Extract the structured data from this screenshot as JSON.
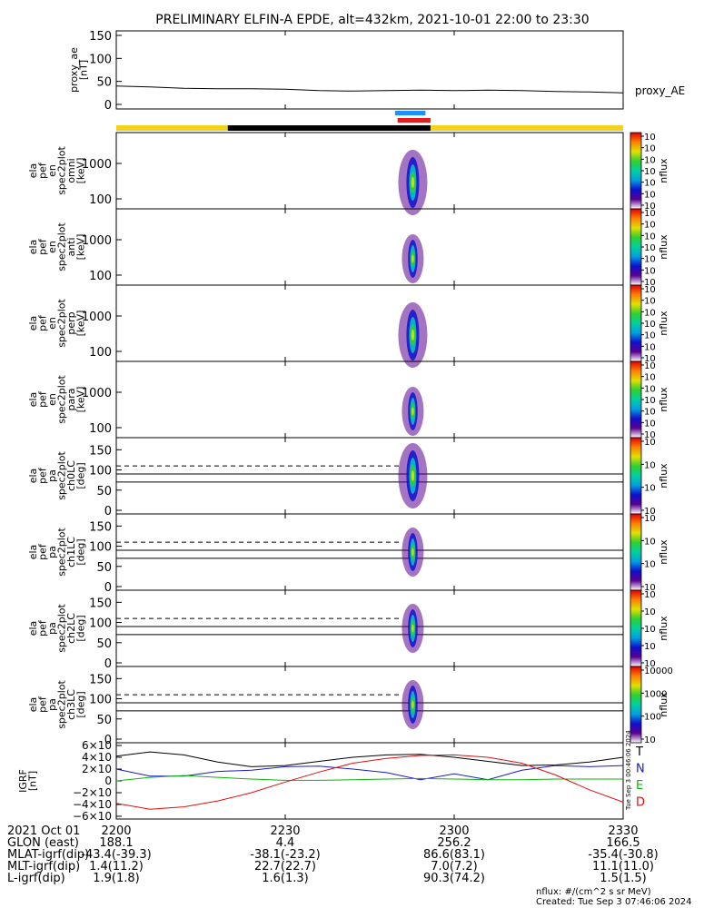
{
  "chart_data": {
    "type": "spectrogram",
    "title": "PRELIMINARY ELFIN-A EPDE, alt=432km, 2021-10-01 22:00 to 23:30",
    "x_ticks": [
      "2200",
      "2230",
      "2300",
      "2330"
    ],
    "proxy_ae": {
      "ylabel": [
        "proxy_ae",
        "[nT]"
      ],
      "yticks": [
        "150",
        "100",
        "50",
        "0"
      ],
      "ylim": [
        0,
        150
      ],
      "series_label": "proxy_AE",
      "values": [
        40,
        38,
        35,
        34,
        34,
        33,
        30,
        29,
        30,
        31,
        30,
        31,
        30,
        28,
        27,
        25
      ]
    },
    "status_bar": {
      "segments": [
        {
          "from": 0.0,
          "to": 0.22,
          "color": "#f2d21a"
        },
        {
          "from": 0.22,
          "to": 0.62,
          "color": "#000000"
        },
        {
          "from": 0.62,
          "to": 1.0,
          "color": "#f2d21a"
        }
      ],
      "markers": [
        {
          "from": 0.55,
          "to": 0.61,
          "color": "#1e90ff"
        },
        {
          "from": 0.555,
          "to": 0.62,
          "color": "#e02020"
        }
      ]
    },
    "panels": [
      {
        "ylabel": [
          "ela",
          "pef",
          "en",
          "spec2plot",
          "omni",
          "[keV]"
        ],
        "yticks": [
          "1000",
          "100"
        ],
        "yscale": "log",
        "cbar_ticks": [
          "10<sup>7</sup>",
          "10<sup>6</sup>",
          "10<sup>5</sup>",
          "10<sup>4</sup>",
          "10<sup>3</sup>",
          "10<sup>2</sup>",
          "10<sup>1</sup>"
        ],
        "cbar_label": "nflux"
      },
      {
        "ylabel": [
          "ela",
          "pef",
          "en",
          "spec2plot",
          "anti",
          "[keV]"
        ],
        "yticks": [
          "1000",
          "100"
        ],
        "yscale": "log",
        "cbar_ticks": [
          "10<sup>7</sup>",
          "10<sup>6</sup>",
          "10<sup>5</sup>",
          "10<sup>4</sup>",
          "10<sup>3</sup>",
          "10<sup>2</sup>",
          "10<sup>1</sup>"
        ],
        "cbar_label": "nflux"
      },
      {
        "ylabel": [
          "ela",
          "pef",
          "en",
          "spec2plot",
          "perp",
          "[keV]"
        ],
        "yticks": [
          "1000",
          "100"
        ],
        "yscale": "log",
        "cbar_ticks": [
          "10<sup>7</sup>",
          "10<sup>6</sup>",
          "10<sup>5</sup>",
          "10<sup>4</sup>",
          "10<sup>3</sup>",
          "10<sup>2</sup>",
          "10<sup>1</sup>"
        ],
        "cbar_label": "nflux"
      },
      {
        "ylabel": [
          "ela",
          "pef",
          "en",
          "spec2plot",
          "para",
          "[keV]"
        ],
        "yticks": [
          "1000",
          "100"
        ],
        "yscale": "log",
        "cbar_ticks": [
          "10<sup>7</sup>",
          "10<sup>6</sup>",
          "10<sup>5</sup>",
          "10<sup>4</sup>",
          "10<sup>3</sup>",
          "10<sup>2</sup>",
          "10<sup>1</sup>"
        ],
        "cbar_label": "nflux"
      },
      {
        "ylabel": [
          "ela",
          "pef",
          "pa",
          "spec2plot",
          "ch0LC",
          "[deg]"
        ],
        "yticks": [
          "150",
          "100",
          "50",
          "0"
        ],
        "yscale": "linear",
        "cbar_ticks": [
          "10<sup>7</sup>",
          "10<sup>6</sup>",
          "10<sup>5</sup>",
          "10<sup>4</sup>"
        ],
        "cbar_label": "nflux"
      },
      {
        "ylabel": [
          "ela",
          "pef",
          "pa",
          "spec2plot",
          "ch1LC",
          "[deg]"
        ],
        "yticks": [
          "150",
          "100",
          "50",
          "0"
        ],
        "yscale": "linear",
        "cbar_ticks": [
          "10<sup>6</sup>",
          "10<sup>5</sup>",
          "10<sup>4</sup>",
          "10<sup>3</sup>"
        ],
        "cbar_label": "nflux"
      },
      {
        "ylabel": [
          "ela",
          "pef",
          "pa",
          "spec2plot",
          "ch2LC",
          "[deg]"
        ],
        "yticks": [
          "150",
          "100",
          "50",
          "0"
        ],
        "yscale": "linear",
        "cbar_ticks": [
          "10<sup>6</sup>",
          "10<sup>5</sup>",
          "10<sup>4</sup>",
          "10<sup>3</sup>",
          "10<sup>2</sup>"
        ],
        "cbar_label": "nflux"
      },
      {
        "ylabel": [
          "ela",
          "pef",
          "pa",
          "spec2plot",
          "ch3LC",
          "[deg]"
        ],
        "yticks": [
          "150",
          "100",
          "50",
          "0"
        ],
        "yscale": "linear",
        "cbar_ticks": [
          "10000",
          "1000",
          "100",
          "10"
        ],
        "cbar_label": "nflux"
      }
    ],
    "igrf": {
      "ylabel": [
        "IGRF",
        "[nT]"
      ],
      "yticks": [
        "6×10<sup>4</sup>",
        "4×10<sup>4</sup>",
        "2×10<sup>4</sup>",
        "0",
        "−2×10<sup>4</sup>",
        "−4×10<sup>4</sup>",
        "−6×10<sup>4</sup>"
      ],
      "ylim": [
        -60000,
        60000
      ],
      "series": [
        {
          "name": "T",
          "color": "#000000",
          "values": [
            42000,
            49000,
            44000,
            32000,
            24000,
            26000,
            33000,
            40000,
            44000,
            45000,
            40000,
            33000,
            26000,
            27000,
            32000,
            40000
          ]
        },
        {
          "name": "N",
          "color": "#1a1acc",
          "values": [
            20000,
            8000,
            8000,
            16000,
            18000,
            24000,
            25000,
            20000,
            14000,
            2000,
            12000,
            2000,
            18000,
            26000,
            24000,
            26000
          ]
        },
        {
          "name": "E",
          "color": "#10b010",
          "values": [
            0,
            6000,
            9000,
            6000,
            3000,
            1000,
            1000,
            2000,
            3000,
            4000,
            3000,
            2000,
            2000,
            3000,
            3000,
            3000
          ]
        },
        {
          "name": "D",
          "color": "#dd1010",
          "values": [
            -38000,
            -48000,
            -44000,
            -34000,
            -20000,
            -2000,
            15000,
            30000,
            38000,
            43000,
            44000,
            40000,
            30000,
            10000,
            -15000,
            -36000
          ]
        }
      ]
    },
    "side_stamp": "Tue Sep  3 00:46:06 2024"
  },
  "footer": {
    "rows": [
      {
        "label": "2021 Oct 01",
        "values": [
          "2200",
          "2230",
          "2300",
          "2330"
        ]
      },
      {
        "label": "GLON (east)",
        "values": [
          "188.1",
          "4.4",
          "256.2",
          "166.5"
        ]
      },
      {
        "label": "MLAT-igrf(dip)",
        "values": [
          "-43.4(-39.3)",
          "-38.1(-23.2)",
          "86.6(83.1)",
          "-35.4(-30.8)"
        ]
      },
      {
        "label": "MLT-igrf(dip)",
        "values": [
          "1.4(11.2)",
          "22.7(22.7)",
          "7.0(7.2)",
          "11.1(11.0)"
        ]
      },
      {
        "label": "L-igrf(dip)",
        "values": [
          "1.9(1.8)",
          "1.6(1.3)",
          "90.3(74.2)",
          "1.5(1.5)"
        ]
      }
    ],
    "units_note": "nflux: #/(cm^2 s sr MeV)",
    "created": "Created: Tue Sep  3 07:46:06 2024"
  }
}
